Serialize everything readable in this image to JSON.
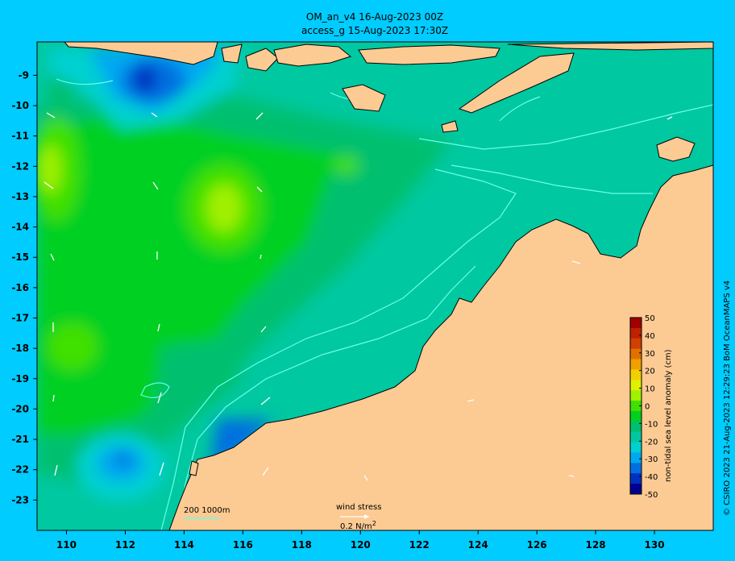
{
  "title": {
    "line1": "OM_an_v4  16-Aug-2023 00Z",
    "line2": "access_g 15-Aug-2023 17:30Z"
  },
  "map": {
    "lon_range": [
      109,
      132
    ],
    "lat_range": [
      -24,
      -7.9
    ],
    "lon_ticks": [
      "110",
      "112",
      "114",
      "116",
      "118",
      "120",
      "122",
      "124",
      "126",
      "128",
      "130"
    ],
    "lat_ticks": [
      "-9",
      "-10",
      "-11",
      "-12",
      "-13",
      "-14",
      "-15",
      "-16",
      "-17",
      "-18",
      "-19",
      "-20",
      "-21",
      "-22",
      "-23"
    ],
    "lon_tick_values": [
      110,
      112,
      114,
      116,
      118,
      120,
      122,
      124,
      126,
      128,
      130
    ],
    "lat_tick_values": [
      -9,
      -10,
      -11,
      -12,
      -13,
      -14,
      -15,
      -16,
      -17,
      -18,
      -19,
      -20,
      -21,
      -22,
      -23
    ],
    "colors": {
      "land": "#fcca93",
      "coast": "#000000",
      "isobath": "#66ffee",
      "frame_bg": "#00ccff"
    }
  },
  "colorbar": {
    "label": "non-tidal sea level anomaly (cm)",
    "ticks": [
      "50",
      "40",
      "30",
      "20",
      "10",
      "0",
      "-10",
      "-20",
      "-30",
      "-40",
      "-50"
    ],
    "range": [
      -50,
      50
    ],
    "colors": [
      "#000090",
      "#0030c0",
      "#0070e0",
      "#00a8f0",
      "#00d0d0",
      "#00c8a0",
      "#00c070",
      "#00d020",
      "#40e000",
      "#a0f000",
      "#e0f000",
      "#f0d000",
      "#f0a000",
      "#e07000",
      "#d04000",
      "#c02000",
      "#a00000"
    ]
  },
  "isobath_legend": "200  1000m",
  "wind_stress": {
    "label": "wind stress",
    "unit_base": "0.2 N/m",
    "unit_exp": "2"
  },
  "credit": "© CSIRO 2023   21-Aug-2023 12:29:23 BoM OceanMAPS v4"
}
